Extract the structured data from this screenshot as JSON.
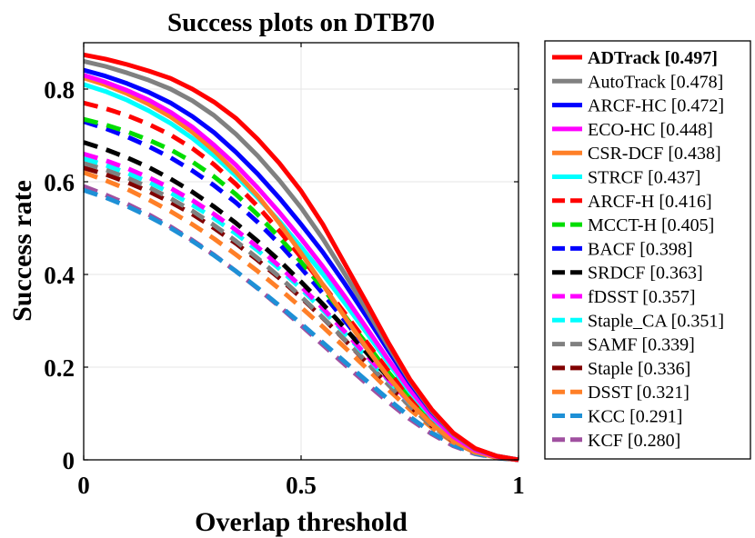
{
  "chart_data": {
    "type": "line",
    "title": "Success plots on DTB70",
    "xlabel": "Overlap threshold",
    "ylabel": "Success rate",
    "xlim": [
      0,
      1
    ],
    "ylim": [
      0,
      0.9
    ],
    "xticks": [
      0,
      0.5,
      1
    ],
    "xtick_labels": [
      "0",
      "0.5",
      "1"
    ],
    "yticks": [
      0,
      0.2,
      0.4,
      0.6,
      0.8
    ],
    "ytick_labels": [
      "0",
      "0.2",
      "0.4",
      "0.6",
      "0.8"
    ],
    "grid": true,
    "legend_position": "right-outside",
    "x": [
      0,
      0.05,
      0.1,
      0.15,
      0.2,
      0.25,
      0.3,
      0.35,
      0.4,
      0.45,
      0.5,
      0.55,
      0.6,
      0.65,
      0.7,
      0.75,
      0.8,
      0.85,
      0.9,
      0.95,
      1.0
    ],
    "series": [
      {
        "name": "ADTrack",
        "score": "[0.497]",
        "label": "ADTrack [0.497]",
        "color": "#ff0000",
        "dash": "solid",
        "bold": true,
        "values": [
          0.874,
          0.865,
          0.853,
          0.839,
          0.823,
          0.8,
          0.772,
          0.737,
          0.692,
          0.64,
          0.58,
          0.508,
          0.424,
          0.34,
          0.254,
          0.174,
          0.109,
          0.058,
          0.025,
          0.008,
          0.0
        ]
      },
      {
        "name": "AutoTrack",
        "score": "[0.478]",
        "label": "AutoTrack [0.478]",
        "color": "#808080",
        "dash": "solid",
        "bold": false,
        "values": [
          0.86,
          0.849,
          0.835,
          0.819,
          0.8,
          0.775,
          0.743,
          0.703,
          0.656,
          0.603,
          0.544,
          0.477,
          0.402,
          0.325,
          0.246,
          0.171,
          0.106,
          0.056,
          0.024,
          0.008,
          0.0
        ]
      },
      {
        "name": "ARCF-HC",
        "score": "[0.472]",
        "label": "ARCF-HC [0.472]",
        "color": "#0000ff",
        "dash": "solid",
        "bold": false,
        "values": [
          0.841,
          0.828,
          0.812,
          0.793,
          0.77,
          0.741,
          0.706,
          0.664,
          0.617,
          0.565,
          0.508,
          0.448,
          0.381,
          0.31,
          0.237,
          0.166,
          0.104,
          0.056,
          0.024,
          0.008,
          0.0
        ]
      },
      {
        "name": "ECO-HC",
        "score": "[0.448]",
        "label": "ECO-HC [0.448]",
        "color": "#ff00ff",
        "dash": "solid",
        "bold": false,
        "values": [
          0.83,
          0.815,
          0.797,
          0.776,
          0.75,
          0.718,
          0.679,
          0.636,
          0.587,
          0.534,
          0.477,
          0.417,
          0.353,
          0.285,
          0.217,
          0.152,
          0.095,
          0.05,
          0.021,
          0.007,
          0.0
        ]
      },
      {
        "name": "CSR-DCF",
        "score": "[0.438]",
        "label": "CSR-DCF [0.438]",
        "color": "#ff7f27",
        "dash": "solid",
        "bold": false,
        "values": [
          0.824,
          0.809,
          0.79,
          0.767,
          0.74,
          0.707,
          0.667,
          0.621,
          0.57,
          0.511,
          0.446,
          0.378,
          0.309,
          0.242,
          0.18,
          0.124,
          0.077,
          0.041,
          0.017,
          0.005,
          0.0
        ]
      },
      {
        "name": "STRCF",
        "score": "[0.437]",
        "label": "STRCF [0.437]",
        "color": "#00ffff",
        "dash": "solid",
        "bold": false,
        "values": [
          0.81,
          0.795,
          0.776,
          0.753,
          0.726,
          0.694,
          0.656,
          0.613,
          0.566,
          0.515,
          0.459,
          0.401,
          0.339,
          0.275,
          0.21,
          0.147,
          0.092,
          0.049,
          0.021,
          0.007,
          0.0
        ]
      },
      {
        "name": "ARCF-H",
        "score": "[0.416]",
        "label": "ARCF-H [0.416]",
        "color": "#ff0000",
        "dash": "dashed",
        "bold": false,
        "values": [
          0.77,
          0.758,
          0.743,
          0.724,
          0.701,
          0.672,
          0.637,
          0.595,
          0.547,
          0.494,
          0.437,
          0.378,
          0.317,
          0.255,
          0.193,
          0.135,
          0.085,
          0.045,
          0.019,
          0.006,
          0.0
        ]
      },
      {
        "name": "MCCT-H",
        "score": "[0.405]",
        "label": "MCCT-H [0.405]",
        "color": "#00dd00",
        "dash": "dashed",
        "bold": false,
        "values": [
          0.735,
          0.723,
          0.708,
          0.69,
          0.669,
          0.643,
          0.611,
          0.573,
          0.529,
          0.48,
          0.427,
          0.37,
          0.311,
          0.251,
          0.19,
          0.133,
          0.083,
          0.044,
          0.019,
          0.006,
          0.0
        ]
      },
      {
        "name": "BACF",
        "score": "[0.398]",
        "label": "BACF [0.398]",
        "color": "#0000ff",
        "dash": "dashed",
        "bold": false,
        "values": [
          0.73,
          0.715,
          0.697,
          0.676,
          0.652,
          0.624,
          0.592,
          0.555,
          0.513,
          0.466,
          0.414,
          0.359,
          0.301,
          0.242,
          0.183,
          0.128,
          0.08,
          0.042,
          0.018,
          0.006,
          0.0
        ]
      },
      {
        "name": "SRDCF",
        "score": "[0.363]",
        "label": "SRDCF [0.363]",
        "color": "#000000",
        "dash": "dashed",
        "bold": false,
        "values": [
          0.685,
          0.67,
          0.652,
          0.631,
          0.606,
          0.578,
          0.546,
          0.511,
          0.472,
          0.43,
          0.384,
          0.336,
          0.285,
          0.232,
          0.178,
          0.127,
          0.081,
          0.044,
          0.019,
          0.006,
          0.0
        ]
      },
      {
        "name": "fDSST",
        "score": "[0.357]",
        "label": "fDSST [0.357]",
        "color": "#ff00ff",
        "dash": "dashed",
        "bold": false,
        "values": [
          0.66,
          0.646,
          0.629,
          0.609,
          0.586,
          0.56,
          0.53,
          0.496,
          0.459,
          0.418,
          0.374,
          0.327,
          0.277,
          0.226,
          0.174,
          0.124,
          0.079,
          0.043,
          0.018,
          0.006,
          0.0
        ]
      },
      {
        "name": "Staple_CA",
        "score": "[0.351]",
        "label": "Staple_CA [0.351]",
        "color": "#00ffff",
        "dash": "dashed",
        "bold": false,
        "values": [
          0.65,
          0.636,
          0.619,
          0.599,
          0.576,
          0.55,
          0.521,
          0.488,
          0.452,
          0.412,
          0.369,
          0.323,
          0.274,
          0.223,
          0.172,
          0.123,
          0.078,
          0.042,
          0.018,
          0.006,
          0.0
        ]
      },
      {
        "name": "SAMF",
        "score": "[0.339]",
        "label": "SAMF [0.339]",
        "color": "#808080",
        "dash": "dashed",
        "bold": false,
        "values": [
          0.64,
          0.626,
          0.609,
          0.588,
          0.564,
          0.537,
          0.506,
          0.472,
          0.435,
          0.395,
          0.352,
          0.307,
          0.26,
          0.212,
          0.163,
          0.116,
          0.074,
          0.04,
          0.017,
          0.005,
          0.0
        ]
      },
      {
        "name": "Staple",
        "score": "[0.336]",
        "label": "Staple [0.336]",
        "color": "#800000",
        "dash": "dashed",
        "bold": false,
        "values": [
          0.63,
          0.616,
          0.599,
          0.579,
          0.556,
          0.53,
          0.5,
          0.467,
          0.431,
          0.392,
          0.35,
          0.306,
          0.259,
          0.211,
          0.163,
          0.116,
          0.074,
          0.04,
          0.017,
          0.005,
          0.0
        ]
      },
      {
        "name": "DSST",
        "score": "[0.321]",
        "label": "DSST [0.321]",
        "color": "#ff7f27",
        "dash": "dashed",
        "bold": false,
        "values": [
          0.62,
          0.603,
          0.584,
          0.561,
          0.536,
          0.508,
          0.477,
          0.443,
          0.407,
          0.369,
          0.329,
          0.287,
          0.243,
          0.198,
          0.152,
          0.109,
          0.07,
          0.038,
          0.016,
          0.005,
          0.0
        ]
      },
      {
        "name": "KCC",
        "score": "[0.291]",
        "label": "KCC [0.291]",
        "color": "#1e90d6",
        "dash": "dashed",
        "bold": false,
        "values": [
          0.582,
          0.566,
          0.547,
          0.525,
          0.5,
          0.472,
          0.441,
          0.407,
          0.371,
          0.333,
          0.294,
          0.253,
          0.212,
          0.171,
          0.131,
          0.093,
          0.059,
          0.032,
          0.014,
          0.004,
          0.0
        ]
      },
      {
        "name": "KCF",
        "score": "[0.280]",
        "label": "KCF [0.280]",
        "color": "#a050a0",
        "dash": "dashed",
        "bold": false,
        "values": [
          0.59,
          0.572,
          0.552,
          0.529,
          0.503,
          0.474,
          0.442,
          0.407,
          0.37,
          0.331,
          0.29,
          0.248,
          0.206,
          0.165,
          0.125,
          0.088,
          0.056,
          0.03,
          0.013,
          0.004,
          0.0
        ]
      }
    ]
  }
}
